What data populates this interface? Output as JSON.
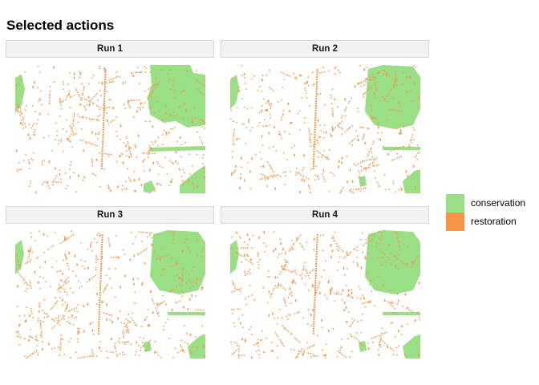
{
  "title": "Selected actions",
  "panels": [
    {
      "label": "Run 1"
    },
    {
      "label": "Run 2"
    },
    {
      "label": "Run 3"
    },
    {
      "label": "Run 4"
    }
  ],
  "legend": {
    "items": [
      {
        "label": "conservation",
        "color": "#9ADE85"
      },
      {
        "label": "restoration",
        "color": "#F69446"
      }
    ]
  }
}
